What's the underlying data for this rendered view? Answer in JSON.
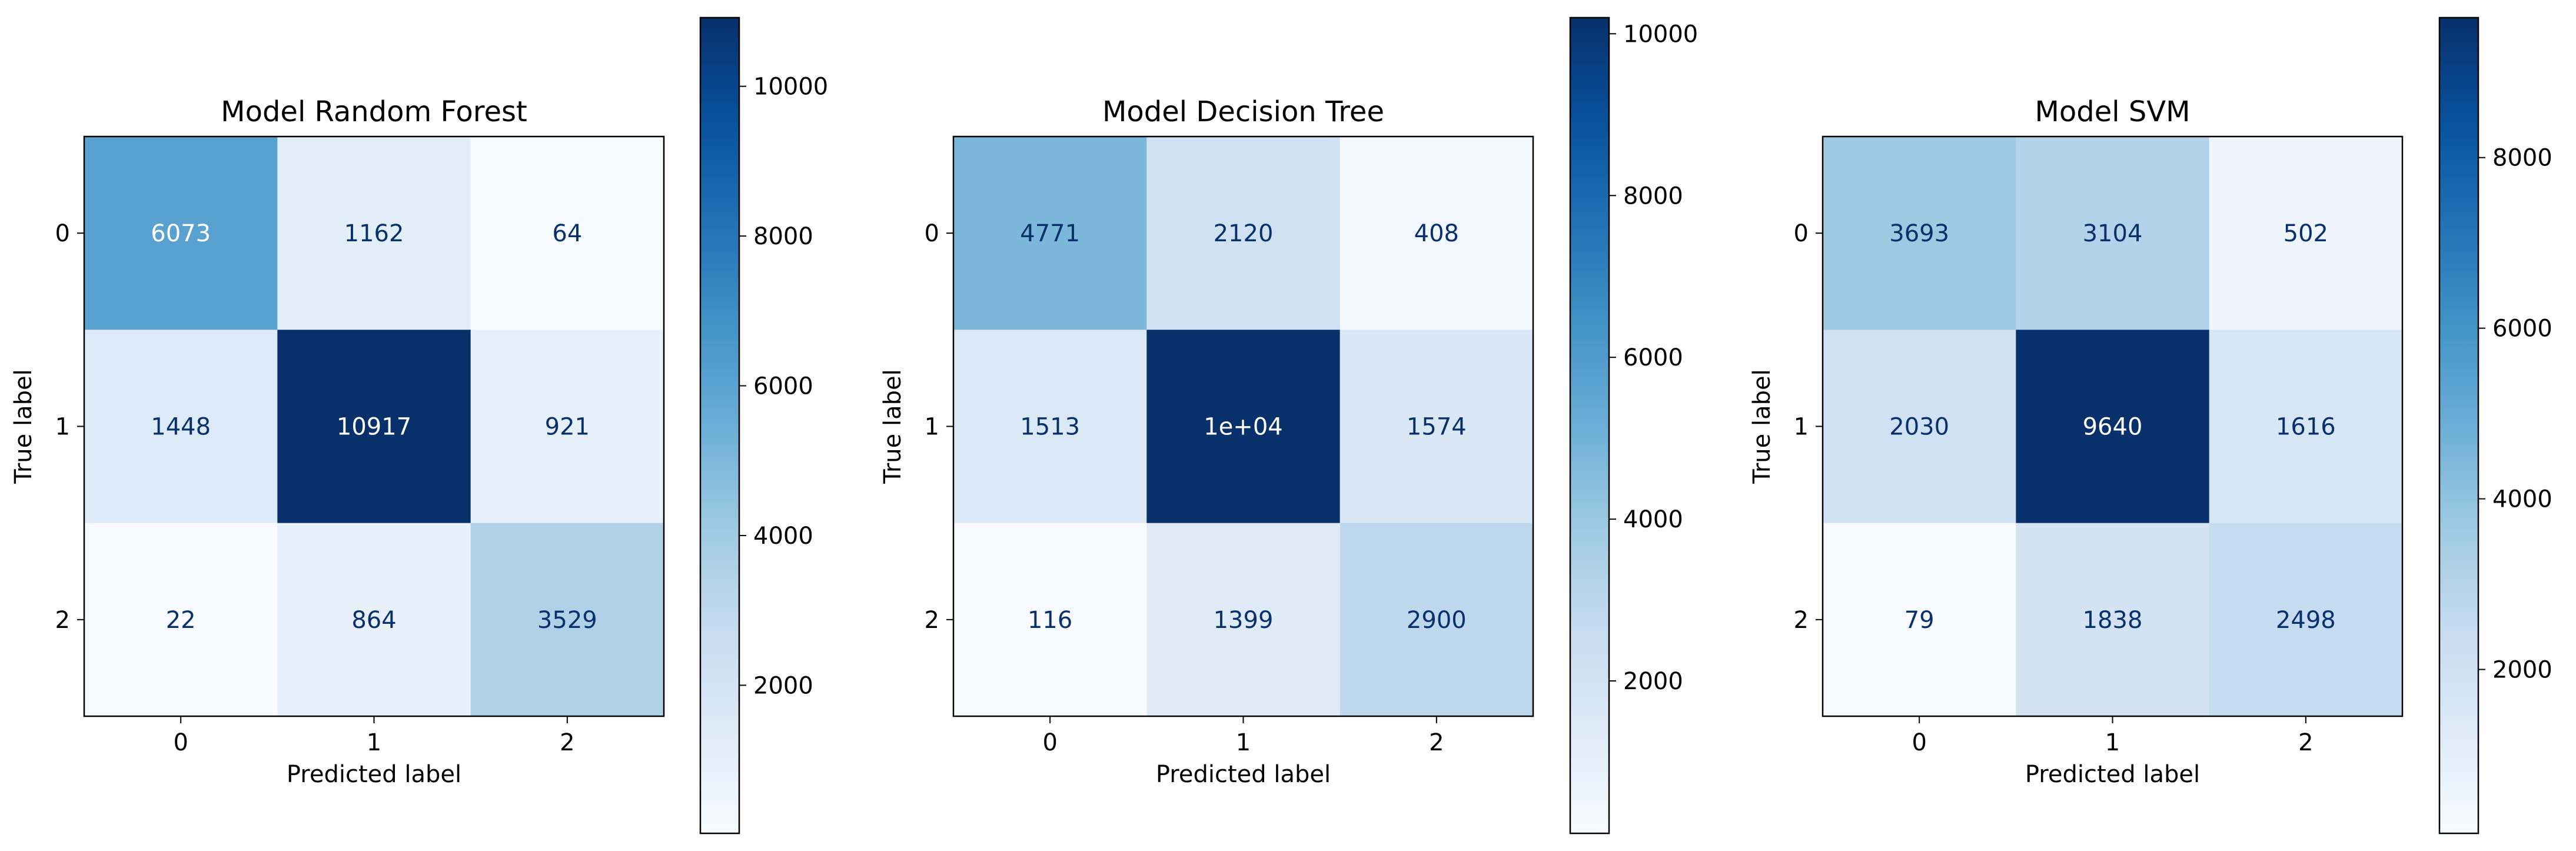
{
  "colors": {
    "colormap": "Blues",
    "light_text": "#ffffff",
    "dark_text": "#08306b"
  },
  "chart_data": [
    {
      "type": "heatmap",
      "title": "Model Random Forest",
      "xlabel": "Predicted label",
      "ylabel": "True label",
      "x_ticks": [
        "0",
        "1",
        "2"
      ],
      "y_ticks": [
        "0",
        "1",
        "2"
      ],
      "matrix": [
        [
          6073,
          1162,
          64
        ],
        [
          1448,
          10917,
          921
        ],
        [
          22,
          864,
          3529
        ]
      ],
      "cell_labels": [
        [
          "6073",
          "1162",
          "64"
        ],
        [
          "1448",
          "10917",
          "921"
        ],
        [
          "22",
          "864",
          "3529"
        ]
      ],
      "colorbar": {
        "min": 22,
        "max": 10917,
        "ticks": [
          2000,
          4000,
          6000,
          8000,
          10000
        ]
      }
    },
    {
      "type": "heatmap",
      "title": "Model Decision Tree",
      "xlabel": "Predicted label",
      "ylabel": "True label",
      "x_ticks": [
        "0",
        "1",
        "2"
      ],
      "y_ticks": [
        "0",
        "1",
        "2"
      ],
      "matrix": [
        [
          4771,
          2120,
          408
        ],
        [
          1513,
          10199,
          1574
        ],
        [
          116,
          1399,
          2900
        ]
      ],
      "cell_labels": [
        [
          "4771",
          "2120",
          "408"
        ],
        [
          "1513",
          "1e+04",
          "1574"
        ],
        [
          "116",
          "1399",
          "2900"
        ]
      ],
      "colorbar": {
        "min": 116,
        "max": 10199,
        "ticks": [
          2000,
          4000,
          6000,
          8000,
          10000
        ]
      }
    },
    {
      "type": "heatmap",
      "title": "Model SVM",
      "xlabel": "Predicted label",
      "ylabel": "True label",
      "x_ticks": [
        "0",
        "1",
        "2"
      ],
      "y_ticks": [
        "0",
        "1",
        "2"
      ],
      "matrix": [
        [
          3693,
          3104,
          502
        ],
        [
          2030,
          9640,
          1616
        ],
        [
          79,
          1838,
          2498
        ]
      ],
      "cell_labels": [
        [
          "3693",
          "3104",
          "502"
        ],
        [
          "2030",
          "9640",
          "1616"
        ],
        [
          "79",
          "1838",
          "2498"
        ]
      ],
      "colorbar": {
        "min": 79,
        "max": 9640,
        "ticks": [
          2000,
          4000,
          6000,
          8000
        ]
      }
    }
  ]
}
